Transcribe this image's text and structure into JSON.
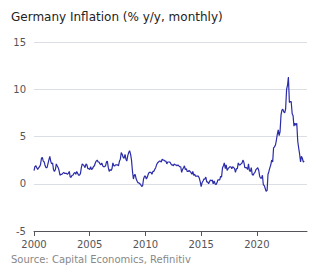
{
  "chart_data": {
    "type": "line",
    "title": "Germany Inflation (% y/y, monthly)",
    "annotations": [
      "Source: Capital Economics, Refinitiv"
    ],
    "color": "#2b2ca8",
    "xlim": [
      2000.0,
      2024.5
    ],
    "xticks": [
      2000,
      2005,
      2010,
      2015,
      2020
    ],
    "ylim": [
      -5,
      15
    ],
    "yticks": [
      -5,
      0,
      5,
      10,
      15
    ],
    "grid": true,
    "x": [
      2000.0,
      2000.08,
      2000.17,
      2000.25,
      2000.33,
      2000.42,
      2000.5,
      2000.58,
      2000.67,
      2000.75,
      2000.83,
      2000.92,
      2001.0,
      2001.08,
      2001.17,
      2001.25,
      2001.33,
      2001.42,
      2001.5,
      2001.58,
      2001.67,
      2001.75,
      2001.83,
      2001.92,
      2002.0,
      2002.08,
      2002.17,
      2002.25,
      2002.33,
      2002.42,
      2002.5,
      2002.58,
      2002.67,
      2002.75,
      2002.83,
      2002.92,
      2003.0,
      2003.08,
      2003.17,
      2003.25,
      2003.33,
      2003.42,
      2003.5,
      2003.58,
      2003.67,
      2003.75,
      2003.83,
      2003.92,
      2004.0,
      2004.08,
      2004.17,
      2004.25,
      2004.33,
      2004.42,
      2004.5,
      2004.58,
      2004.67,
      2004.75,
      2004.83,
      2004.92,
      2005.0,
      2005.08,
      2005.17,
      2005.25,
      2005.33,
      2005.42,
      2005.5,
      2005.58,
      2005.67,
      2005.75,
      2005.83,
      2005.92,
      2006.0,
      2006.08,
      2006.17,
      2006.25,
      2006.33,
      2006.42,
      2006.5,
      2006.58,
      2006.67,
      2006.75,
      2006.83,
      2006.92,
      2007.0,
      2007.08,
      2007.17,
      2007.25,
      2007.33,
      2007.42,
      2007.5,
      2007.58,
      2007.67,
      2007.75,
      2007.83,
      2007.92,
      2008.0,
      2008.08,
      2008.17,
      2008.25,
      2008.33,
      2008.42,
      2008.5,
      2008.58,
      2008.67,
      2008.75,
      2008.83,
      2008.92,
      2009.0,
      2009.08,
      2009.17,
      2009.25,
      2009.33,
      2009.42,
      2009.5,
      2009.58,
      2009.67,
      2009.75,
      2009.83,
      2009.92,
      2010.0,
      2010.08,
      2010.17,
      2010.25,
      2010.33,
      2010.42,
      2010.5,
      2010.58,
      2010.67,
      2010.75,
      2010.83,
      2010.92,
      2011.0,
      2011.08,
      2011.17,
      2011.25,
      2011.33,
      2011.42,
      2011.5,
      2011.58,
      2011.67,
      2011.75,
      2011.83,
      2011.92,
      2012.0,
      2012.08,
      2012.17,
      2012.25,
      2012.33,
      2012.42,
      2012.5,
      2012.58,
      2012.67,
      2012.75,
      2012.83,
      2012.92,
      2013.0,
      2013.08,
      2013.17,
      2013.25,
      2013.33,
      2013.42,
      2013.5,
      2013.58,
      2013.67,
      2013.75,
      2013.83,
      2013.92,
      2014.0,
      2014.08,
      2014.17,
      2014.25,
      2014.33,
      2014.42,
      2014.5,
      2014.58,
      2014.67,
      2014.75,
      2014.83,
      2014.92,
      2015.0,
      2015.08,
      2015.17,
      2015.25,
      2015.33,
      2015.42,
      2015.5,
      2015.58,
      2015.67,
      2015.75,
      2015.83,
      2015.92,
      2016.0,
      2016.08,
      2016.17,
      2016.25,
      2016.33,
      2016.42,
      2016.5,
      2016.58,
      2016.67,
      2016.75,
      2016.83,
      2016.92,
      2017.0,
      2017.08,
      2017.17,
      2017.25,
      2017.33,
      2017.42,
      2017.5,
      2017.58,
      2017.67,
      2017.75,
      2017.83,
      2017.92,
      2018.0,
      2018.08,
      2018.17,
      2018.25,
      2018.33,
      2018.42,
      2018.5,
      2018.58,
      2018.67,
      2018.75,
      2018.83,
      2018.92,
      2019.0,
      2019.08,
      2019.17,
      2019.25,
      2019.33,
      2019.42,
      2019.5,
      2019.58,
      2019.67,
      2019.75,
      2019.83,
      2019.92,
      2020.0,
      2020.08,
      2020.17,
      2020.25,
      2020.33,
      2020.42,
      2020.5,
      2020.58,
      2020.67,
      2020.75,
      2020.83,
      2020.92,
      2021.0,
      2021.08,
      2021.17,
      2021.25,
      2021.33,
      2021.42,
      2021.5,
      2021.58,
      2021.67,
      2021.75,
      2021.83,
      2021.92,
      2022.0,
      2022.08,
      2022.17,
      2022.25,
      2022.33,
      2022.42,
      2022.5,
      2022.58,
      2022.67,
      2022.75,
      2022.83,
      2022.92,
      2023.0,
      2023.08,
      2023.17,
      2023.25,
      2023.33,
      2023.42,
      2023.5,
      2023.58,
      2023.67,
      2023.75,
      2023.83,
      2023.92,
      2024.0,
      2024.08,
      2024.17,
      2024.25
    ],
    "values": [
      1.4,
      1.8,
      1.9,
      1.7,
      1.5,
      1.7,
      1.8,
      2.0,
      2.7,
      2.8,
      2.4,
      2.3,
      1.9,
      1.7,
      1.7,
      2.1,
      2.5,
      2.9,
      2.4,
      2.1,
      2.2,
      1.5,
      1.3,
      1.5,
      2.1,
      1.9,
      1.7,
      1.4,
      0.9,
      1.0,
      1.0,
      1.1,
      1.2,
      1.1,
      1.1,
      1.1,
      1.0,
      1.1,
      1.3,
      0.7,
      0.7,
      0.9,
      0.9,
      1.1,
      1.2,
      1.0,
      1.3,
      1.1,
      0.9,
      0.9,
      1.1,
      1.7,
      2.1,
      2.0,
      1.9,
      1.7,
      2.1,
      2.0,
      1.6,
      1.6,
      1.5,
      1.8,
      1.5,
      1.6,
      1.8,
      1.9,
      2.2,
      2.4,
      2.5,
      2.3,
      2.3,
      2.1,
      2.0,
      2.2,
      1.9,
      1.8,
      1.8,
      1.9,
      2.3,
      2.4,
      1.7,
      1.3,
      1.5,
      1.4,
      1.6,
      2.2,
      1.9,
      1.9,
      2.0,
      2.0,
      2.0,
      1.9,
      2.4,
      2.6,
      3.3,
      3.1,
      2.8,
      2.7,
      3.1,
      2.6,
      2.4,
      3.0,
      3.3,
      3.5,
      3.1,
      2.5,
      1.4,
      0.5,
      0.9,
      1.0,
      0.5,
      0.3,
      0.1,
      0.1,
      0.0,
      -0.1,
      -0.3,
      -0.2,
      0.5,
      0.8,
      0.8,
      0.5,
      0.7,
      1.0,
      1.2,
      1.2,
      1.2,
      1.0,
      1.3,
      1.3,
      1.5,
      1.7,
      2.0,
      2.2,
      2.3,
      2.4,
      2.4,
      2.3,
      2.6,
      2.5,
      2.5,
      2.4,
      2.4,
      2.1,
      2.3,
      2.3,
      2.3,
      2.2,
      2.0,
      2.0,
      1.9,
      2.1,
      2.0,
      2.0,
      1.9,
      2.0,
      1.9,
      1.8,
      1.8,
      1.2,
      1.5,
      1.7,
      1.9,
      1.5,
      1.6,
      1.3,
      1.3,
      1.4,
      1.3,
      1.2,
      1.0,
      1.3,
      0.9,
      1.0,
      0.8,
      0.8,
      0.8,
      0.8,
      0.6,
      0.2,
      -0.3,
      0.1,
      0.3,
      0.5,
      0.5,
      0.7,
      0.2,
      0.2,
      0.0,
      0.2,
      0.4,
      0.3,
      0.4,
      0.0,
      0.3,
      0.0,
      -0.1,
      0.1,
      0.4,
      0.4,
      0.4,
      0.8,
      0.7,
      1.7,
      1.9,
      2.2,
      1.6,
      2.0,
      1.4,
      1.6,
      1.7,
      1.8,
      1.8,
      1.6,
      1.8,
      1.7,
      1.6,
      1.2,
      1.6,
      1.6,
      2.2,
      2.0,
      2.0,
      2.1,
      2.2,
      2.5,
      2.3,
      1.7,
      1.7,
      1.7,
      1.5,
      2.1,
      1.4,
      1.3,
      1.7,
      1.0,
      0.9,
      1.1,
      1.2,
      1.5,
      1.6,
      1.7,
      1.4,
      0.8,
      0.6,
      0.6,
      0.9,
      -0.1,
      -0.2,
      -0.5,
      -0.8,
      -0.7,
      1.0,
      1.3,
      1.7,
      2.0,
      2.5,
      2.3,
      3.8,
      3.9,
      4.1,
      4.6,
      5.2,
      5.7,
      5.1,
      5.5,
      7.3,
      7.8,
      7.9,
      7.6,
      7.5,
      7.9,
      10.0,
      10.4,
      11.3,
      8.6,
      8.7,
      8.7,
      7.4,
      7.2,
      6.1,
      6.4,
      6.2,
      6.4,
      4.5,
      3.8,
      3.2,
      2.3,
      2.9,
      2.7,
      2.3,
      2.4
    ]
  }
}
